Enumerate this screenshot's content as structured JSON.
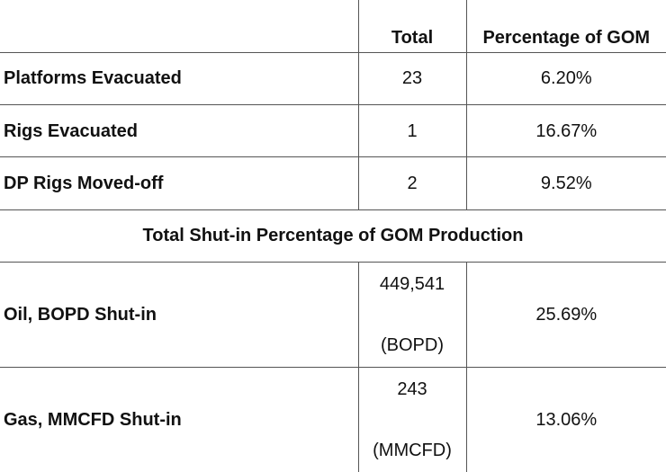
{
  "header": {
    "col1": "",
    "col2": "Total",
    "col3": "Percentage of GOM"
  },
  "rows": [
    {
      "label": "Platforms Evacuated",
      "total": "23",
      "percent": "6.20%"
    },
    {
      "label": "Rigs Evacuated",
      "total": "1",
      "percent": "16.67%"
    },
    {
      "label": "DP Rigs Moved-off",
      "total": "2",
      "percent": "9.52%"
    }
  ],
  "section_title": "Total Shut-in Percentage of GOM Production",
  "production": [
    {
      "label": "Oil, BOPD Shut-in",
      "value": "449,541",
      "unit": "(BOPD)",
      "percent": "25.69%"
    },
    {
      "label": "Gas, MMCFD Shut-in",
      "value": "243",
      "unit": "(MMCFD)",
      "percent": "13.06%"
    }
  ]
}
